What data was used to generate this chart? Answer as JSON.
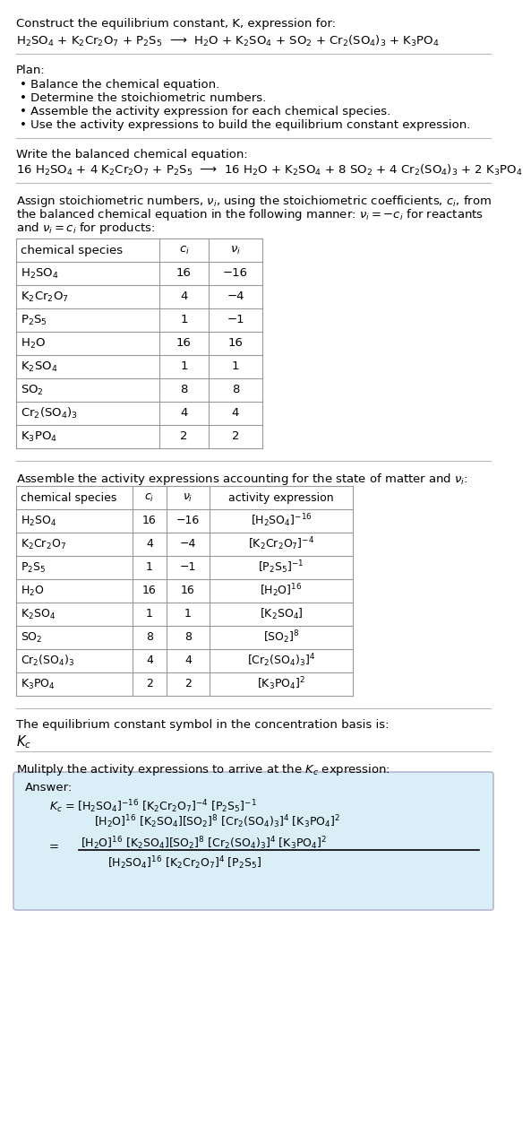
{
  "title_line1": "Construct the equilibrium constant, K, expression for:",
  "reaction_unbalanced": "H$_2$SO$_4$ + K$_2$Cr$_2$O$_7$ + P$_2$S$_5$  ⟶  H$_2$O + K$_2$SO$_4$ + SO$_2$ + Cr$_2$(SO$_4$)$_3$ + K$_3$PO$_4$",
  "plan_header": "Plan:",
  "plan_items": [
    "• Balance the chemical equation.",
    "• Determine the stoichiometric numbers.",
    "• Assemble the activity expression for each chemical species.",
    "• Use the activity expressions to build the equilibrium constant expression."
  ],
  "balanced_header": "Write the balanced chemical equation:",
  "reaction_balanced": "16 H$_2$SO$_4$ + 4 K$_2$Cr$_2$O$_7$ + P$_2$S$_5$  ⟶  16 H$_2$O + K$_2$SO$_4$ + 8 SO$_2$ + 4 Cr$_2$(SO$_4$)$_3$ + 2 K$_3$PO$_4$",
  "stoich_header_lines": [
    "Assign stoichiometric numbers, $\\nu_i$, using the stoichiometric coefficients, $c_i$, from",
    "the balanced chemical equation in the following manner: $\\nu_i = -c_i$ for reactants",
    "and $\\nu_i = c_i$ for products:"
  ],
  "stoich_cols": [
    "chemical species",
    "$c_i$",
    "$\\nu_i$"
  ],
  "stoich_rows": [
    [
      "H$_2$SO$_4$",
      "16",
      "−16"
    ],
    [
      "K$_2$Cr$_2$O$_7$",
      "4",
      "−4"
    ],
    [
      "P$_2$S$_5$",
      "1",
      "−1"
    ],
    [
      "H$_2$O",
      "16",
      "16"
    ],
    [
      "K$_2$SO$_4$",
      "1",
      "1"
    ],
    [
      "SO$_2$",
      "8",
      "8"
    ],
    [
      "Cr$_2$(SO$_4$)$_3$",
      "4",
      "4"
    ],
    [
      "K$_3$PO$_4$",
      "2",
      "2"
    ]
  ],
  "activity_header": "Assemble the activity expressions accounting for the state of matter and $\\nu_i$:",
  "activity_cols": [
    "chemical species",
    "$c_i$",
    "$\\nu_i$",
    "activity expression"
  ],
  "activity_rows": [
    [
      "H$_2$SO$_4$",
      "16",
      "−16",
      "[H$_2$SO$_4$]$^{-16}$"
    ],
    [
      "K$_2$Cr$_2$O$_7$",
      "4",
      "−4",
      "[K$_2$Cr$_2$O$_7$]$^{-4}$"
    ],
    [
      "P$_2$S$_5$",
      "1",
      "−1",
      "[P$_2$S$_5$]$^{-1}$"
    ],
    [
      "H$_2$O",
      "16",
      "16",
      "[H$_2$O]$^{16}$"
    ],
    [
      "K$_2$SO$_4$",
      "1",
      "1",
      "[K$_2$SO$_4$]"
    ],
    [
      "SO$_2$",
      "8",
      "8",
      "[SO$_2$]$^8$"
    ],
    [
      "Cr$_2$(SO$_4$)$_3$",
      "4",
      "4",
      "[Cr$_2$(SO$_4$)$_3$]$^4$"
    ],
    [
      "K$_3$PO$_4$",
      "2",
      "2",
      "[K$_3$PO$_4$]$^2$"
    ]
  ],
  "kc_text": "The equilibrium constant symbol in the concentration basis is:",
  "kc_symbol": "$K_c$",
  "multiply_text": "Mulitply the activity expressions to arrive at the $K_c$ expression:",
  "answer_label": "Answer:",
  "answer_line1": "$K_c$ = [H$_2$SO$_4$]$^{-16}$ [K$_2$Cr$_2$O$_7$]$^{-4}$ [P$_2$S$_5$]$^{-1}$",
  "answer_line2": "        [H$_2$O]$^{16}$ [K$_2$SO$_4$][SO$_2$]$^8$ [Cr$_2$(SO$_4$)$_3$]$^4$ [K$_3$PO$_4$]$^2$",
  "answer_eq_num": "[H$_2$O]$^{16}$ [K$_2$SO$_4$][SO$_2$]$^8$ [Cr$_2$(SO$_4$)$_3$]$^4$ [K$_3$PO$_4$]$^2$",
  "answer_eq_den": "[H$_2$SO$_4$]$^{16}$ [K$_2$Cr$_2$O$_7$]$^4$ [P$_2$S$_5$]",
  "bg_color": "#ffffff",
  "answer_box_color": "#daeef8",
  "sep_color": "#bbbbbb"
}
